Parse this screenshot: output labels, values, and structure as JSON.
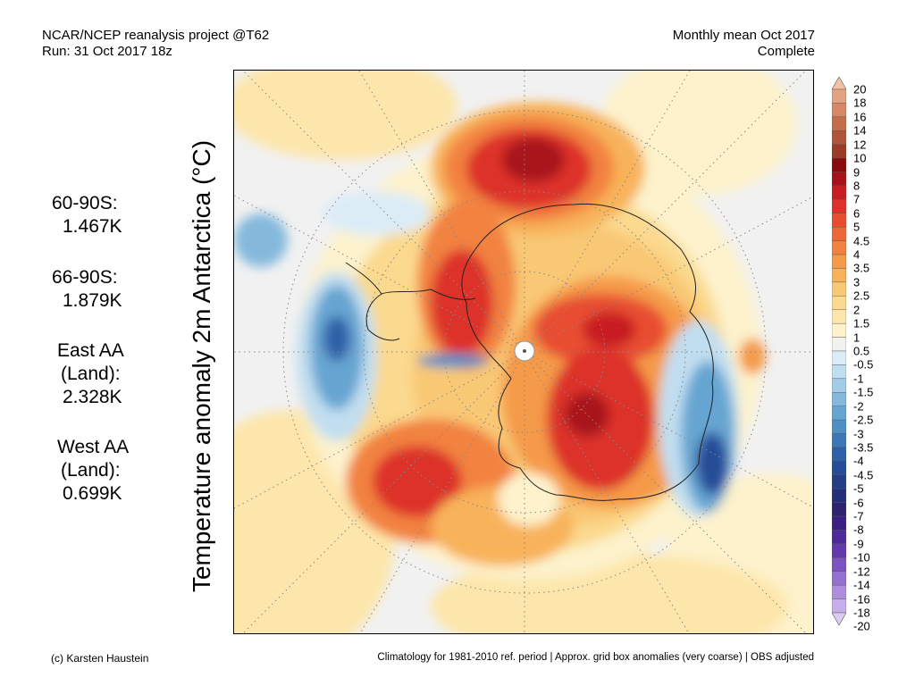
{
  "header": {
    "source": "NCAR/NCEP reanalysis project @T62",
    "run": "Run: 31 Oct 2017 18z",
    "period": "Monthly mean Oct 2017",
    "status": "Complete"
  },
  "map": {
    "ylabel": "Temperature anomaly 2m Antarctica (°C)",
    "projection": "south polar stereographic"
  },
  "stats": [
    {
      "lines": [
        "60-90S:",
        "1.467K"
      ]
    },
    {
      "lines": [
        "66-90S:",
        "1.879K"
      ]
    },
    {
      "lines": [
        "East AA",
        "(Land):",
        "2.328K"
      ]
    },
    {
      "lines": [
        "West AA",
        "(Land):",
        "0.699K"
      ]
    }
  ],
  "colorbar": {
    "labels": [
      "20",
      "18",
      "16",
      "14",
      "12",
      "10",
      "9",
      "8",
      "7",
      "6",
      "5",
      "4.5",
      "4",
      "3.5",
      "3",
      "2.5",
      "2",
      "1.5",
      "1",
      "0.5",
      "-0.5",
      "-1",
      "-1.5",
      "-2",
      "-2.5",
      "-3",
      "-3.5",
      "-4",
      "-4.5",
      "-5",
      "-6",
      "-7",
      "-8",
      "-9",
      "-10",
      "-12",
      "-14",
      "-16",
      "-18",
      "-20"
    ],
    "colors": [
      "#f2c1a6",
      "#e3a284",
      "#d58766",
      "#c46d4b",
      "#b0553a",
      "#9b3c27",
      "#8a0b0b",
      "#a8121a",
      "#c81e22",
      "#dd3129",
      "#e84d31",
      "#ee6837",
      "#f2823f",
      "#f59a49",
      "#f8b25a",
      "#f9c874",
      "#fbd98e",
      "#fde6ab",
      "#fdf2cc",
      "#f1f1f1",
      "#dcecf7",
      "#c1def0",
      "#a3cce6",
      "#84b9dc",
      "#66a5d2",
      "#4f8fc6",
      "#3c78b8",
      "#2d61a8",
      "#264e98",
      "#243e88",
      "#262f7a",
      "#2d2470",
      "#3a2080",
      "#4d2a99",
      "#6339ad",
      "#7b52c0",
      "#9470d1",
      "#ad8fde",
      "#c5aee9",
      "#dcccf3"
    ]
  },
  "footer": {
    "credit": "(c) Karsten Haustein",
    "note": "Climatology for 1981-2010 ref. period | Approx. grid box anomalies (very coarse) | OBS adjusted"
  }
}
